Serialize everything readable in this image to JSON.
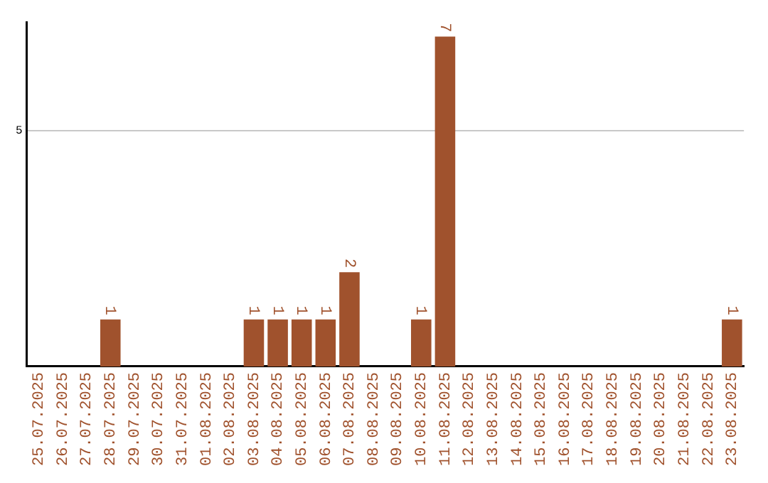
{
  "chart_data": {
    "type": "bar",
    "categories": [
      "25.07.2025",
      "26.07.2025",
      "27.07.2025",
      "28.07.2025",
      "29.07.2025",
      "30.07.2025",
      "31.07.2025",
      "01.08.2025",
      "02.08.2025",
      "03.08.2025",
      "04.08.2025",
      "05.08.2025",
      "06.08.2025",
      "07.08.2025",
      "08.08.2025",
      "09.08.2025",
      "10.08.2025",
      "11.08.2025",
      "12.08.2025",
      "13.08.2025",
      "14.08.2025",
      "15.08.2025",
      "16.08.2025",
      "17.08.2025",
      "18.08.2025",
      "19.08.2025",
      "20.08.2025",
      "21.08.2025",
      "22.08.2025",
      "23.08.2025"
    ],
    "values": [
      0,
      0,
      0,
      1,
      0,
      0,
      0,
      0,
      0,
      1,
      1,
      1,
      1,
      2,
      0,
      0,
      1,
      7,
      0,
      0,
      0,
      0,
      0,
      0,
      0,
      0,
      0,
      0,
      0,
      1
    ],
    "value_labels": [
      null,
      null,
      null,
      "1",
      null,
      null,
      null,
      null,
      null,
      "1",
      "1",
      "1",
      "1",
      "2",
      null,
      null,
      "1",
      "7",
      null,
      null,
      null,
      null,
      null,
      null,
      null,
      null,
      null,
      null,
      null,
      "1"
    ],
    "color": "#a0522d",
    "ylim": [
      0,
      7.3
    ],
    "yticks": [
      5
    ],
    "grid": "y",
    "legend": false
  }
}
